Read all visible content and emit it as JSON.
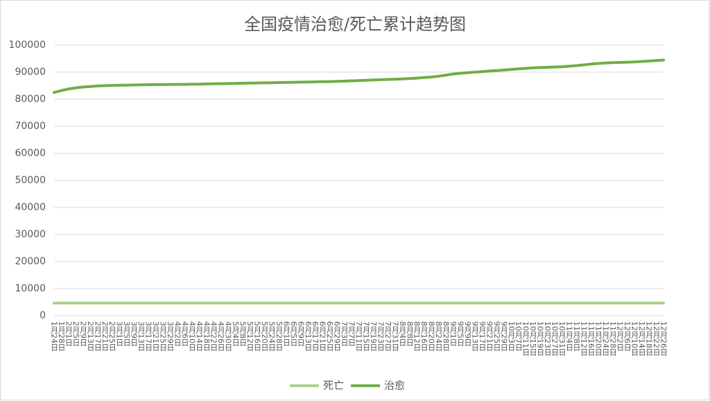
{
  "chart_data": {
    "type": "line",
    "title": "全国疫情治愈/死亡累计趋势图",
    "categories": [
      "1月24日",
      "1月28日",
      "2月1日",
      "2月5日",
      "2月9日",
      "2月13日",
      "2月17日",
      "2月21日",
      "2月25日",
      "3月1日",
      "3月5日",
      "3月9日",
      "3月13日",
      "3月17日",
      "3月21日",
      "3月25日",
      "3月29日",
      "4月2日",
      "4月6日",
      "4月10日",
      "4月14日",
      "4月18日",
      "4月22日",
      "4月26日",
      "4月30日",
      "5月4日",
      "5月8日",
      "5月12日",
      "5月16日",
      "5月20日",
      "5月24日",
      "5月28日",
      "6月1日",
      "6月5日",
      "6月9日",
      "6月13日",
      "6月17日",
      "6月21日",
      "6月25日",
      "6月29日",
      "7月3日",
      "7月7日",
      "7月11日",
      "7月15日",
      "7月19日",
      "7月23日",
      "7月27日",
      "7月31日",
      "8月4日",
      "8月8日",
      "8月12日",
      "8月16日",
      "8月20日",
      "8月24日",
      "8月28日",
      "9月1日",
      "9月5日",
      "9月9日",
      "9月13日",
      "9月17日",
      "9月21日",
      "9月25日",
      "9月29日",
      "10月3日",
      "10月7日",
      "10月11日",
      "10月15日",
      "10月19日",
      "10月23日",
      "10月27日",
      "10月31日",
      "11月4日",
      "11月8日",
      "11月12日",
      "11月16日",
      "11月20日",
      "11月24日",
      "11月28日",
      "12月2日",
      "12月6日",
      "12月10日",
      "12月14日",
      "12月18日",
      "12月22日",
      "12月26日"
    ],
    "series": [
      {
        "name": "死亡",
        "color": "#a9d18e",
        "values": [
          4636,
          4636,
          4636,
          4636,
          4636,
          4636,
          4636,
          4636,
          4636,
          4636,
          4636,
          4636,
          4636,
          4636,
          4636,
          4636,
          4636,
          4636,
          4636,
          4636,
          4636,
          4636,
          4636,
          4636,
          4636,
          4636,
          4636,
          4636,
          4636,
          4636,
          4636,
          4636,
          4636,
          4636,
          4636,
          4636,
          4636,
          4636,
          4636,
          4636,
          4636,
          4636,
          4636,
          4636,
          4636,
          4636,
          4636,
          4636,
          4636,
          4636,
          4636,
          4636,
          4636,
          4636,
          4636,
          4636,
          4636,
          4636,
          4636,
          4636,
          4636,
          4636,
          4636,
          4636,
          4636,
          4636,
          4636,
          4636,
          4636,
          4636,
          4636,
          4636,
          4636,
          4636,
          4636,
          4636,
          4636,
          4636,
          4636,
          4636,
          4636,
          4636,
          4636,
          4636,
          4636
        ]
      },
      {
        "name": "治愈",
        "color": "#70ad47",
        "values": [
          82500,
          83200,
          83800,
          84200,
          84500,
          84700,
          84900,
          85000,
          85100,
          85150,
          85200,
          85250,
          85300,
          85350,
          85400,
          85420,
          85450,
          85480,
          85500,
          85550,
          85600,
          85650,
          85700,
          85750,
          85800,
          85850,
          85900,
          85950,
          86000,
          86050,
          86100,
          86150,
          86200,
          86250,
          86300,
          86350,
          86400,
          86450,
          86500,
          86600,
          86700,
          86800,
          86900,
          87000,
          87100,
          87200,
          87300,
          87400,
          87500,
          87650,
          87800,
          88000,
          88200,
          88500,
          88900,
          89300,
          89600,
          89800,
          90000,
          90200,
          90400,
          90600,
          90800,
          91000,
          91200,
          91400,
          91600,
          91700,
          91800,
          91900,
          92000,
          92200,
          92400,
          92700,
          93000,
          93200,
          93400,
          93500,
          93600,
          93700,
          93800,
          93950,
          94100,
          94300,
          94500
        ]
      }
    ],
    "ylim": [
      0,
      100000
    ],
    "yticks": [
      0,
      10000,
      20000,
      30000,
      40000,
      50000,
      60000,
      70000,
      80000,
      90000,
      100000
    ],
    "grid": true,
    "legend": "bottom"
  }
}
